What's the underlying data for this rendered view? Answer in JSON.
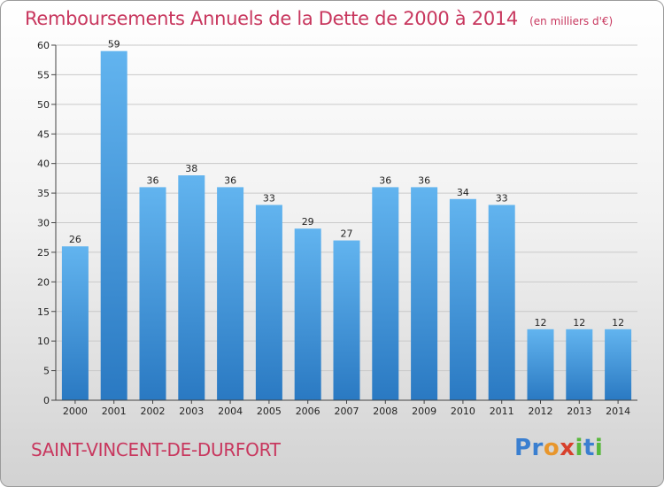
{
  "header": {
    "title": "Remboursements Annuels de la Dette de 2000 à 2014",
    "subtitle": "(en milliers d'€)"
  },
  "footer": {
    "commune": "SAINT-VINCENT-DE-DURFORT",
    "logo_text": "Proxiti"
  },
  "colors": {
    "title": "#c8375e",
    "bar_top": "#62b4ef",
    "bar_bottom": "#2a79c2"
  },
  "chart_data": {
    "type": "bar",
    "title": "Remboursements Annuels de la Dette de 2000 à 2014",
    "xlabel": "",
    "ylabel": "",
    "unit": "milliers d'€",
    "categories": [
      "2000",
      "2001",
      "2002",
      "2003",
      "2004",
      "2005",
      "2006",
      "2007",
      "2008",
      "2009",
      "2010",
      "2011",
      "2012",
      "2013",
      "2014"
    ],
    "values": [
      26,
      59,
      36,
      38,
      36,
      33,
      29,
      27,
      36,
      36,
      34,
      33,
      12,
      12,
      12
    ],
    "ylim": [
      0,
      60
    ],
    "yticks": [
      0,
      5,
      10,
      15,
      20,
      25,
      30,
      35,
      40,
      45,
      50,
      55,
      60
    ],
    "grid": true,
    "legend": "none"
  }
}
